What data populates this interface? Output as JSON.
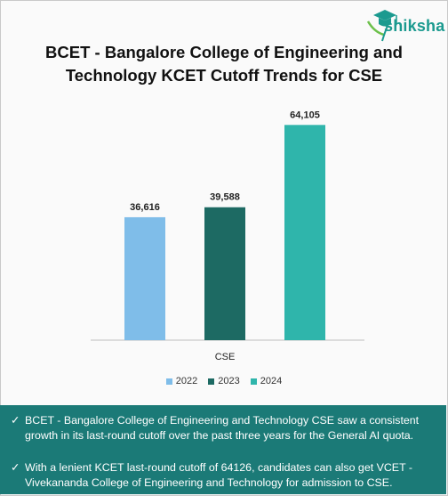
{
  "brand": {
    "name": "shiksha",
    "icon": "graduation-cap-icon",
    "color": "#1b9a8f"
  },
  "title": "BCET - Bangalore College of Engineering and Technology KCET Cutoff Trends for CSE",
  "chart_data": {
    "type": "bar",
    "categories": [
      "CSE"
    ],
    "series": [
      {
        "name": "2022",
        "values": [
          36616
        ],
        "label": "36,616",
        "color": "#7fbde9"
      },
      {
        "name": "2023",
        "values": [
          39588
        ],
        "label": "39,588",
        "color": "#1d6a63"
      },
      {
        "name": "2024",
        "values": [
          64105
        ],
        "label": "64,105",
        "color": "#2fb5ab"
      }
    ],
    "ylim": [
      0,
      74000
    ],
    "grid": false,
    "legend": "bottom",
    "xlabel": "",
    "ylabel": ""
  },
  "notes": {
    "check_icon": "checkmark-icon",
    "items": [
      "BCET - Bangalore College of Engineering and Technology CSE saw a consistent growth in its last-round cutoff over the past three years for the General AI quota.",
      "With a lenient KCET last-round cutoff of 64126, candidates can also get VCET - Vivekananda College of Engineering and Technology for admission to CSE."
    ]
  }
}
